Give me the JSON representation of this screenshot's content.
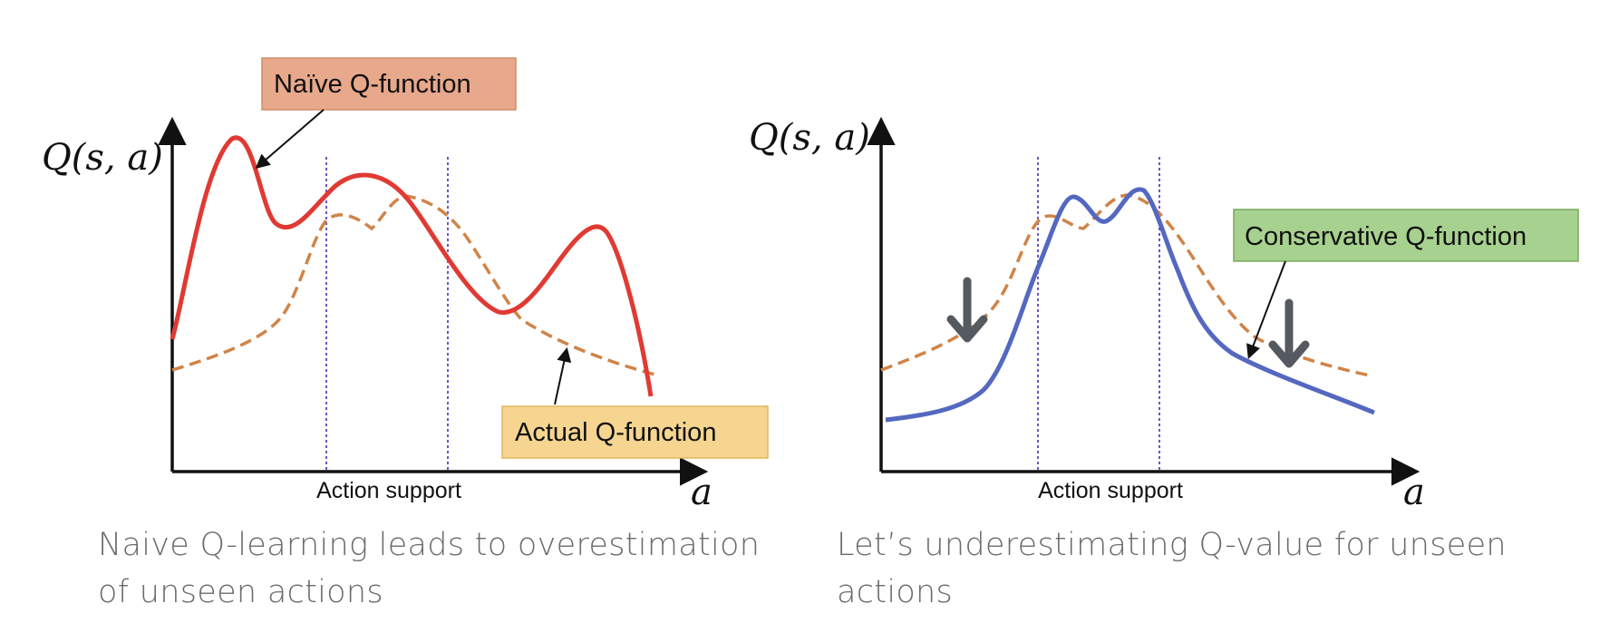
{
  "colors": {
    "naive": "#e03a33",
    "actual": "#d08448",
    "conservative": "#5468c0",
    "naive_box_bg": "#e8a88b",
    "naive_box_border": "#d08c66",
    "actual_box_bg": "#f5d590",
    "actual_box_border": "#e1b95a",
    "conservative_box_bg": "#a7d18f",
    "conservative_box_border": "#7aa85f",
    "support_line": "#4a2bb5",
    "down_arrow": "#555a60"
  },
  "left_panel": {
    "y_axis_label": "Q(s, a)",
    "x_axis_label": "a",
    "support_label": "Action support",
    "naive_label": "Naïve Q-function",
    "actual_label": "Actual Q-function",
    "caption": "Naive Q-learning leads to overestimation of unseen actions"
  },
  "right_panel": {
    "y_axis_label": "Q(s, a)",
    "x_axis_label": "a",
    "support_label": "Action support",
    "conservative_label": "Conservative Q-function",
    "caption": "Let’s underestimating Q-value for unseen actions"
  }
}
